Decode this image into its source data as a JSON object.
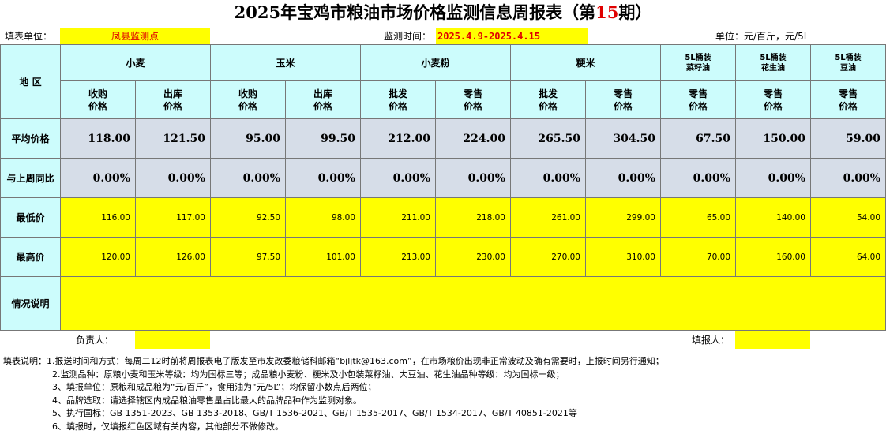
{
  "title": {
    "prefix": "2025年宝鸡市粮油市场价格监测信息周报表（第",
    "issue": "15",
    "suffix": "期）"
  },
  "info": {
    "unit_label": "填表单位：",
    "unit_value": "凤县监测点",
    "time_label": "监测时间：",
    "time_value": "2025.4.9-2025.4.15",
    "measure_unit": "单位：元/百斤，元/5L"
  },
  "table": {
    "region_header": "地  区",
    "groups": [
      "小麦",
      "玉米",
      "小麦粉",
      "粳米"
    ],
    "oil_groups": [
      [
        "5L桶装",
        "菜籽油"
      ],
      [
        "5L桶装",
        "花生油"
      ],
      [
        "5L桶装",
        "豆油"
      ]
    ],
    "subheaders": [
      [
        "收购",
        "价格"
      ],
      [
        "出库",
        "价格"
      ],
      [
        "收购",
        "价格"
      ],
      [
        "出库",
        "价格"
      ],
      [
        "批发",
        "价格"
      ],
      [
        "零售",
        "价格"
      ],
      [
        "批发",
        "价格"
      ],
      [
        "零售",
        "价格"
      ],
      [
        "零售",
        "价格"
      ],
      [
        "零售",
        "价格"
      ],
      [
        "零售",
        "价格"
      ]
    ],
    "rows": {
      "avg": {
        "label": "平均价格",
        "values": [
          "118.00",
          "121.50",
          "95.00",
          "99.50",
          "212.00",
          "224.00",
          "265.50",
          "304.50",
          "67.50",
          "150.00",
          "59.00"
        ]
      },
      "change": {
        "label": "与上周同比",
        "values": [
          "0.00%",
          "0.00%",
          "0.00%",
          "0.00%",
          "0.00%",
          "0.00%",
          "0.00%",
          "0.00%",
          "0.00%",
          "0.00%",
          "0.00%"
        ]
      },
      "min": {
        "label": "最低价",
        "values": [
          "116.00",
          "117.00",
          "92.50",
          "98.00",
          "211.00",
          "218.00",
          "261.00",
          "299.00",
          "65.00",
          "140.00",
          "54.00"
        ]
      },
      "max": {
        "label": "最高价",
        "values": [
          "120.00",
          "126.00",
          "97.50",
          "101.00",
          "213.00",
          "230.00",
          "270.00",
          "310.00",
          "70.00",
          "160.00",
          "64.00"
        ]
      },
      "remark": {
        "label": "情况说明",
        "value": ""
      }
    }
  },
  "footer": {
    "responsible_label": "负责人：",
    "reporter_label": "填报人："
  },
  "notes": [
    "填表说明：1.报送时间和方式：每周二12时前将周报表电子版发至市发改委粮储科邮箱“bjljtk@163.com”，在市场粮价出现非正常波动及确有需要时，上报时间另行通知；",
    "2.监测品种：原粮小麦和玉米等级：均为国标三等；成品粮小麦粉、粳米及小包装菜籽油、大豆油、花生油品种等级：均为国标一级；",
    "3、填报单位：原粮和成品粮为“元/百斤”，食用油为“元/5L”；均保留小数点后两位；",
    "4、品牌选取：请选择辖区内成品粮油零售量占比最大的品牌品种作为监测对象。",
    "5、执行国标：GB 1351-2023、GB 1353-2018、GB/T 1536-2021、GB/T 1535-2017、GB/T 1534-2017、GB/T 40851-2021等",
    "6、填报时，仅填报红色区域有关内容，其他部分不做修改。"
  ]
}
